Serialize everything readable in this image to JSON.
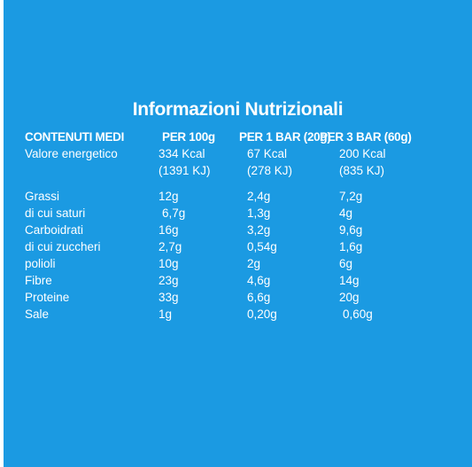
{
  "title": "Informazioni Nutrizionali",
  "headers": [
    "CONTENUTI MEDI",
    "PER 100g",
    "PER 1 BAR (20g)",
    "PER 3 BAR (60g)"
  ],
  "energy": {
    "label": "Valore energetico",
    "per100_kcal": "334 Kcal",
    "per100_kj": "(1391 KJ)",
    "per1_kcal": "67 Kcal",
    "per1_kj": "(278 KJ)",
    "per3_kcal": "200 Kcal",
    "per3_kj": "(835 KJ)"
  },
  "rows": [
    {
      "label": "Grassi",
      "per100": "12g",
      "per1": "2,4g",
      "per3": "7,2g"
    },
    {
      "label": "di cui saturi",
      "per100": "6,7g",
      "per1": "1,3g",
      "per3": "4g"
    },
    {
      "label": "Carboidrati",
      "per100": "16g",
      "per1": "3,2g",
      "per3": "9,6g"
    },
    {
      "label": "di cui zuccheri",
      "per100": "2,7g",
      "per1": "0,54g",
      "per3": "1,6g"
    },
    {
      "label": "polioli",
      "per100": "10g",
      "per1": "2g",
      "per3": "6g"
    },
    {
      "label": "Fibre",
      "per100": "23g",
      "per1": "4,6g",
      "per3": "14g"
    },
    {
      "label": "Proteine",
      "per100": "33g",
      "per1": "6,6g",
      "per3": "20g"
    },
    {
      "label": "Sale",
      "per100": "1g",
      "per1": "0,20g",
      "per3": "0,60g"
    }
  ],
  "colors": {
    "background": "#1b9ae2",
    "text": "#ffffff"
  }
}
